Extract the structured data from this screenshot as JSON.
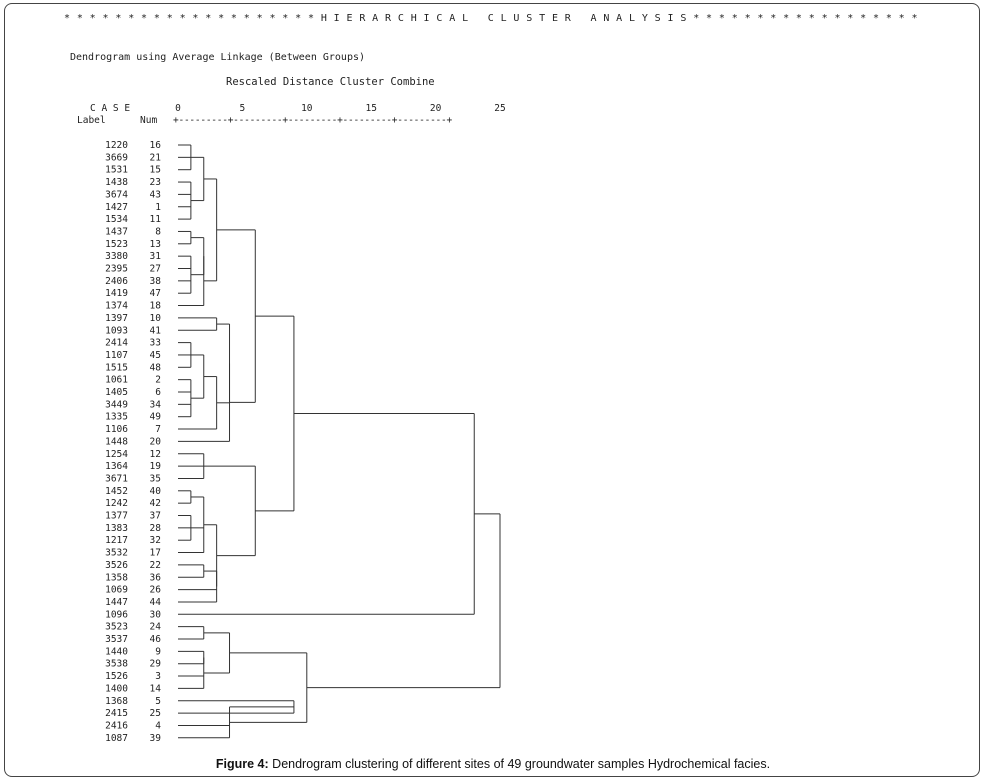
{
  "header": "* * * * * * * * * * * * * * * * * * * * H I E R A R C H I C A L   C L U S T E R   A N A L Y S I S * * * * * * * * * * * * * * * * * *",
  "subtitle": "Dendrogram using Average Linkage (Between Groups)",
  "scale_title": "Rescaled Distance Cluster Combine",
  "col_case": "C A S E",
  "col_label": "Label",
  "col_num": "Num",
  "axis_ticks": [
    "0",
    "5",
    "10",
    "15",
    "20",
    "25"
  ],
  "axis_rule": "+---------+---------+---------+---------+---------+",
  "caption": {
    "prefix": "Figure 4:",
    "text": " Dendrogram clustering of different sites of 49 groundwater samples Hydrochemical facies."
  },
  "chart_data": {
    "type": "dendrogram",
    "linkage": "Average Linkage (Between Groups)",
    "distance_range": [
      0,
      25
    ],
    "leaves": [
      {
        "label": "1220",
        "num": "16"
      },
      {
        "label": "3669",
        "num": "21"
      },
      {
        "label": "1531",
        "num": "15"
      },
      {
        "label": "1438",
        "num": "23"
      },
      {
        "label": "3674",
        "num": "43"
      },
      {
        "label": "1427",
        "num": "1"
      },
      {
        "label": "1534",
        "num": "11"
      },
      {
        "label": "1437",
        "num": "8"
      },
      {
        "label": "1523",
        "num": "13"
      },
      {
        "label": "3380",
        "num": "31"
      },
      {
        "label": "2395",
        "num": "27"
      },
      {
        "label": "2406",
        "num": "38"
      },
      {
        "label": "1419",
        "num": "47"
      },
      {
        "label": "1374",
        "num": "18"
      },
      {
        "label": "1397",
        "num": "10"
      },
      {
        "label": "1093",
        "num": "41"
      },
      {
        "label": "2414",
        "num": "33"
      },
      {
        "label": "1107",
        "num": "45"
      },
      {
        "label": "1515",
        "num": "48"
      },
      {
        "label": "1061",
        "num": "2"
      },
      {
        "label": "1405",
        "num": "6"
      },
      {
        "label": "3449",
        "num": "34"
      },
      {
        "label": "1335",
        "num": "49"
      },
      {
        "label": "1106",
        "num": "7"
      },
      {
        "label": "1448",
        "num": "20"
      },
      {
        "label": "1254",
        "num": "12"
      },
      {
        "label": "1364",
        "num": "19"
      },
      {
        "label": "3671",
        "num": "35"
      },
      {
        "label": "1452",
        "num": "40"
      },
      {
        "label": "1242",
        "num": "42"
      },
      {
        "label": "1377",
        "num": "37"
      },
      {
        "label": "1383",
        "num": "28"
      },
      {
        "label": "1217",
        "num": "32"
      },
      {
        "label": "3532",
        "num": "17"
      },
      {
        "label": "3526",
        "num": "22"
      },
      {
        "label": "1358",
        "num": "36"
      },
      {
        "label": "1069",
        "num": "26"
      },
      {
        "label": "1447",
        "num": "44"
      },
      {
        "label": "1096",
        "num": "30"
      },
      {
        "label": "3523",
        "num": "24"
      },
      {
        "label": "3537",
        "num": "46"
      },
      {
        "label": "1440",
        "num": "9"
      },
      {
        "label": "3538",
        "num": "29"
      },
      {
        "label": "1526",
        "num": "3"
      },
      {
        "label": "1400",
        "num": "14"
      },
      {
        "label": "1368",
        "num": "5"
      },
      {
        "label": "2415",
        "num": "25"
      },
      {
        "label": "2416",
        "num": "4"
      },
      {
        "label": "1087",
        "num": "39"
      }
    ],
    "merges": [
      {
        "id": "A",
        "members": [
          0,
          1,
          2
        ],
        "distance": 1.0
      },
      {
        "id": "B",
        "members": [
          3,
          4,
          5,
          6
        ],
        "distance": 1.0
      },
      {
        "id": "C",
        "members": [
          "A",
          "B"
        ],
        "distance": 2.0
      },
      {
        "id": "D",
        "members": [
          7,
          8
        ],
        "distance": 1.0
      },
      {
        "id": "E",
        "members": [
          9,
          10,
          11,
          12
        ],
        "distance": 1.0
      },
      {
        "id": "F",
        "members": [
          "D",
          "E"
        ],
        "distance": 2.0
      },
      {
        "id": "G",
        "members": [
          "F",
          13
        ],
        "distance": 2.0
      },
      {
        "id": "H",
        "members": [
          "C",
          "G"
        ],
        "distance": 3.0
      },
      {
        "id": "I",
        "members": [
          14,
          15
        ],
        "distance": 3.0
      },
      {
        "id": "J",
        "members": [
          16,
          17,
          18
        ],
        "distance": 1.0
      },
      {
        "id": "K",
        "members": [
          19,
          20,
          21,
          22
        ],
        "distance": 1.0
      },
      {
        "id": "L",
        "members": [
          "J",
          "K"
        ],
        "distance": 2.0
      },
      {
        "id": "M",
        "members": [
          "L",
          23
        ],
        "distance": 3.0
      },
      {
        "id": "N",
        "members": [
          "I",
          "M"
        ],
        "distance": 4.0
      },
      {
        "id": "O",
        "members": [
          "N",
          24
        ],
        "distance": 4.0
      },
      {
        "id": "P",
        "members": [
          "H",
          "O"
        ],
        "distance": 6.0
      },
      {
        "id": "Q",
        "members": [
          25,
          26,
          27
        ],
        "distance": 2.0
      },
      {
        "id": "R",
        "members": [
          28,
          29
        ],
        "distance": 1.0
      },
      {
        "id": "S",
        "members": [
          30,
          31,
          32
        ],
        "distance": 1.0
      },
      {
        "id": "T",
        "members": [
          "R",
          "S",
          33
        ],
        "distance": 2.0
      },
      {
        "id": "U",
        "members": [
          34,
          35
        ],
        "distance": 2.0
      },
      {
        "id": "V",
        "members": [
          "U",
          36,
          37
        ],
        "distance": 3.0
      },
      {
        "id": "W",
        "members": [
          "T",
          "V"
        ],
        "distance": 3.0
      },
      {
        "id": "X",
        "members": [
          "Q",
          "W"
        ],
        "distance": 6.0
      },
      {
        "id": "Y",
        "members": [
          "P",
          "X"
        ],
        "distance": 9.0
      },
      {
        "id": "Z",
        "members": [
          "Y",
          38
        ],
        "distance": 23.0
      },
      {
        "id": "AA",
        "members": [
          39,
          40
        ],
        "distance": 2.0
      },
      {
        "id": "AB",
        "members": [
          41,
          42
        ],
        "distance": 2.0
      },
      {
        "id": "AC",
        "members": [
          "AB",
          43,
          44
        ],
        "distance": 2.0
      },
      {
        "id": "AD",
        "members": [
          "AA",
          "AC"
        ],
        "distance": 4.0
      },
      {
        "id": "AE",
        "members": [
          45,
          46
        ],
        "distance": 9.0
      },
      {
        "id": "AF",
        "members": [
          "AE",
          47,
          48
        ],
        "distance": 4.0
      },
      {
        "id": "AG",
        "members": [
          "AD",
          "AF"
        ],
        "distance": 10.0
      },
      {
        "id": "AH",
        "members": [
          "Z",
          "AG"
        ],
        "distance": 25.0
      }
    ]
  }
}
